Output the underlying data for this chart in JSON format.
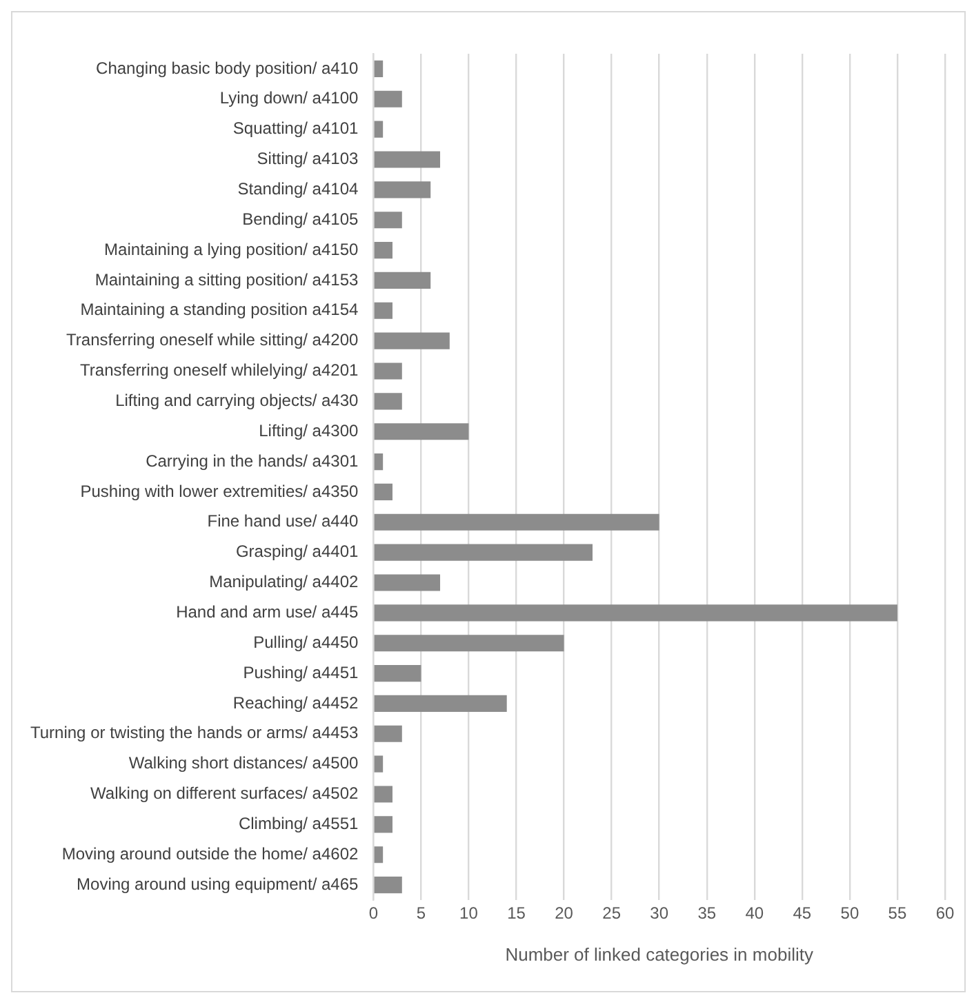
{
  "chart_data": {
    "type": "bar",
    "orientation": "horizontal",
    "xlabel": "Number of linked categories in mobility",
    "categories": [
      "Changing basic body position/ a410",
      "Lying down/ a4100",
      "Squatting/ a4101",
      "Sitting/ a4103",
      "Standing/ a4104",
      "Bending/ a4105",
      "Maintaining a lying position/ a4150",
      "Maintaining a sitting position/ a4153",
      "Maintaining a standing position a4154",
      "Transferring oneself while sitting/ a4200",
      "Transferring oneself whilelying/ a4201",
      "Lifting and carrying objects/ a430",
      "Lifting/ a4300",
      "Carrying in the hands/ a4301",
      "Pushing with lower extremities/ a4350",
      "Fine hand use/ a440",
      "Grasping/ a4401",
      "Manipulating/ a4402",
      "Hand and arm use/ a445",
      "Pulling/ a4450",
      "Pushing/ a4451",
      "Reaching/ a4452",
      "Turning or twisting the hands or arms/ a4453",
      "Walking short distances/ a4500",
      "Walking on different surfaces/ a4502",
      "Climbing/ a4551",
      "Moving around outside the home/ a4602",
      "Moving around using equipment/ a465"
    ],
    "values": [
      1,
      3,
      1,
      7,
      6,
      3,
      2,
      6,
      2,
      8,
      3,
      3,
      10,
      1,
      2,
      30,
      23,
      7,
      55,
      20,
      5,
      14,
      3,
      1,
      2,
      2,
      1,
      3
    ],
    "color": "#8c8c8c",
    "xlim": [
      0,
      60
    ],
    "xticks": [
      0,
      5,
      10,
      15,
      20,
      25,
      30,
      35,
      40,
      45,
      50,
      55,
      60
    ],
    "grid": "x",
    "legend": false
  }
}
